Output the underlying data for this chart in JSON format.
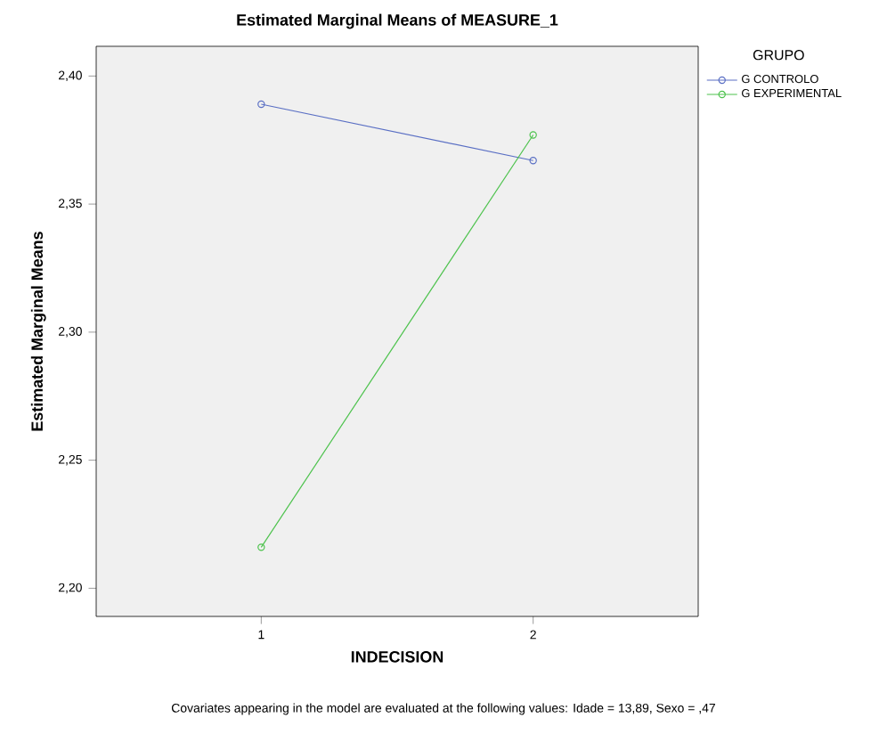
{
  "chart_data": {
    "type": "line",
    "title": "Estimated Marginal Means of MEASURE_1",
    "xlabel": "INDECISION",
    "ylabel": "Estimated Marginal Means",
    "legend_title": "GRUPO",
    "annotations": [
      "Covariates appearing in the model are evaluated at the following values: Idade = 13,89, Sexo = ,47"
    ],
    "categories": [
      "1",
      "2"
    ],
    "series": [
      {
        "name": "G CONTROLO",
        "color": "#5a6fc4",
        "values": [
          2.389,
          2.367
        ]
      },
      {
        "name": "G EXPERIMENTAL",
        "color": "#4cc24c",
        "values": [
          2.216,
          2.377
        ]
      }
    ],
    "ylim": [
      2.189,
      2.4116
    ],
    "yticks": [
      {
        "value": 2.2,
        "label": "2,20"
      },
      {
        "value": 2.25,
        "label": "2,25"
      },
      {
        "value": 2.3,
        "label": "2,30"
      },
      {
        "value": 2.35,
        "label": "2,35"
      },
      {
        "value": 2.4,
        "label": "2,40"
      }
    ],
    "grid": false,
    "legend": "top right",
    "marker": "circle",
    "line_style": "solid"
  }
}
